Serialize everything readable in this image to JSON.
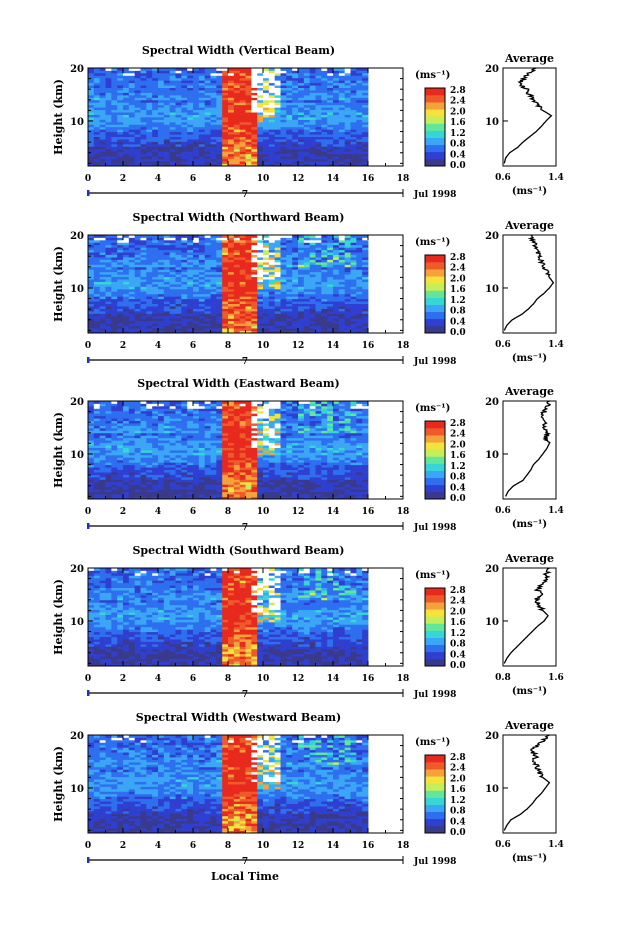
{
  "chart_data": {
    "type": "heatmap",
    "shared": {
      "ylabel": "Height (km)",
      "xlabel": "Local Time",
      "date_label": "Jul 1998",
      "day_label": "7",
      "x_ticks": [
        "0",
        "2",
        "4",
        "6",
        "8",
        "10",
        "12",
        "14",
        "16",
        "18"
      ],
      "y_ticks": [
        "20",
        "10"
      ],
      "xlim": [
        0,
        18
      ],
      "ylim": [
        1.5,
        20
      ],
      "data_xlim": [
        0,
        16
      ],
      "colorbar_unit": "(ms⁻¹)",
      "colorbar_ticks": [
        "2.8",
        "2.4",
        "2.0",
        "1.6",
        "1.2",
        "0.8",
        "0.4",
        "0.0"
      ],
      "colorbar_range": [
        0.0,
        2.8
      ],
      "colorbar_colors": [
        "#3a3a8c",
        "#2f3fd0",
        "#2e6ff0",
        "#3aa6f5",
        "#36d6d6",
        "#62e69a",
        "#c6ee5a",
        "#f5e33d",
        "#f5a23a",
        "#ef5a2a",
        "#e82a1e"
      ],
      "profile_title": "Average",
      "profile_xunit": "(ms⁻¹)",
      "profile_y_ticks": [
        "20",
        "10"
      ]
    },
    "panels": [
      {
        "title": "Spectral Width (Vertical Beam)",
        "profile_x_ticks": [
          "0.6",
          "1.4"
        ],
        "profile_xlim": [
          0.6,
          1.4
        ],
        "profile_heights": [
          2,
          3,
          4,
          5,
          6,
          7,
          8,
          9,
          10,
          11,
          12,
          13,
          14,
          15,
          16,
          17,
          18,
          19,
          20
        ],
        "profile_values": [
          0.62,
          0.64,
          0.7,
          0.82,
          0.9,
          1.0,
          1.1,
          1.18,
          1.25,
          1.33,
          1.2,
          1.12,
          1.05,
          1.0,
          0.95,
          0.85,
          0.9,
          1.0,
          1.1
        ]
      },
      {
        "title": "Spectral Width (Northward Beam)",
        "profile_x_ticks": [
          "0.6",
          "1.4"
        ],
        "profile_xlim": [
          0.6,
          1.4
        ],
        "profile_heights": [
          2,
          3,
          4,
          5,
          6,
          7,
          8,
          9,
          10,
          11,
          12,
          13,
          14,
          15,
          16,
          17,
          18,
          19,
          20
        ],
        "profile_values": [
          0.62,
          0.66,
          0.74,
          0.88,
          0.98,
          1.06,
          1.12,
          1.22,
          1.3,
          1.36,
          1.3,
          1.26,
          1.22,
          1.18,
          1.15,
          1.12,
          1.08,
          1.05,
          1.02
        ]
      },
      {
        "title": "Spectral Width (Eastward Beam)",
        "profile_x_ticks": [
          "0.6",
          "1.4"
        ],
        "profile_xlim": [
          0.6,
          1.4
        ],
        "profile_heights": [
          2,
          3,
          4,
          5,
          6,
          7,
          8,
          9,
          10,
          11,
          12,
          13,
          14,
          15,
          16,
          17,
          18,
          19,
          20
        ],
        "profile_values": [
          0.64,
          0.68,
          0.76,
          0.9,
          0.96,
          1.02,
          1.06,
          1.14,
          1.2,
          1.26,
          1.3,
          1.24,
          1.28,
          1.2,
          1.24,
          1.16,
          1.22,
          1.28,
          1.3
        ]
      },
      {
        "title": "Spectral Width (Southward Beam)",
        "profile_x_ticks": [
          "0.8",
          "1.6"
        ],
        "profile_xlim": [
          0.8,
          1.6
        ],
        "profile_heights": [
          2,
          3,
          4,
          5,
          6,
          7,
          8,
          9,
          10,
          11,
          12,
          13,
          14,
          15,
          16,
          17,
          18,
          19,
          20
        ],
        "profile_values": [
          0.82,
          0.86,
          0.92,
          1.0,
          1.08,
          1.16,
          1.24,
          1.32,
          1.42,
          1.48,
          1.4,
          1.34,
          1.3,
          1.36,
          1.32,
          1.4,
          1.44,
          1.46,
          1.5
        ]
      },
      {
        "title": "Spectral Width (Westward Beam)",
        "profile_x_ticks": [
          "0.6",
          "1.4"
        ],
        "profile_xlim": [
          0.6,
          1.4
        ],
        "profile_heights": [
          2,
          3,
          4,
          5,
          6,
          7,
          8,
          9,
          10,
          11,
          12,
          13,
          14,
          15,
          16,
          17,
          18,
          19,
          20
        ],
        "profile_values": [
          0.62,
          0.66,
          0.72,
          0.86,
          0.96,
          1.04,
          1.1,
          1.18,
          1.24,
          1.3,
          1.2,
          1.14,
          1.12,
          1.06,
          1.1,
          1.04,
          1.12,
          1.2,
          1.3
        ]
      }
    ]
  }
}
